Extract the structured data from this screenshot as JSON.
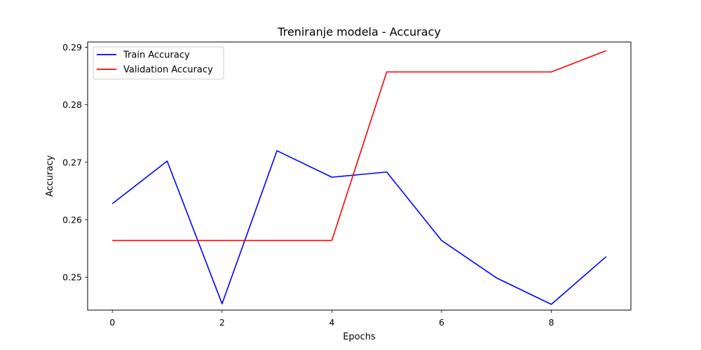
{
  "chart_data": {
    "type": "line",
    "title": "Treniranje modela - Accuracy",
    "xlabel": "Epochs",
    "ylabel": "Accuracy",
    "x": [
      0,
      1,
      2,
      3,
      4,
      5,
      6,
      7,
      8,
      9
    ],
    "xlim": [
      -0.45,
      9.45
    ],
    "ylim": [
      0.2443,
      0.2909
    ],
    "xticks": [
      0,
      2,
      4,
      6,
      8
    ],
    "yticks": [
      0.25,
      0.26,
      0.27,
      0.28,
      0.29
    ],
    "ytick_labels": [
      "0.25",
      "0.26",
      "0.27",
      "0.28",
      "0.29"
    ],
    "grid": false,
    "legend_position": "top-left",
    "series": [
      {
        "name": "Train Accuracy",
        "color": "#0000ff",
        "values": [
          0.2628,
          0.2702,
          0.2454,
          0.272,
          0.2674,
          0.2683,
          0.2564,
          0.2499,
          0.2453,
          0.2536
        ]
      },
      {
        "name": "Validation Accuracy",
        "color": "#ff0000",
        "values": [
          0.2564,
          0.2564,
          0.2564,
          0.2564,
          0.2564,
          0.2857,
          0.2857,
          0.2857,
          0.2857,
          0.2894
        ]
      }
    ]
  }
}
